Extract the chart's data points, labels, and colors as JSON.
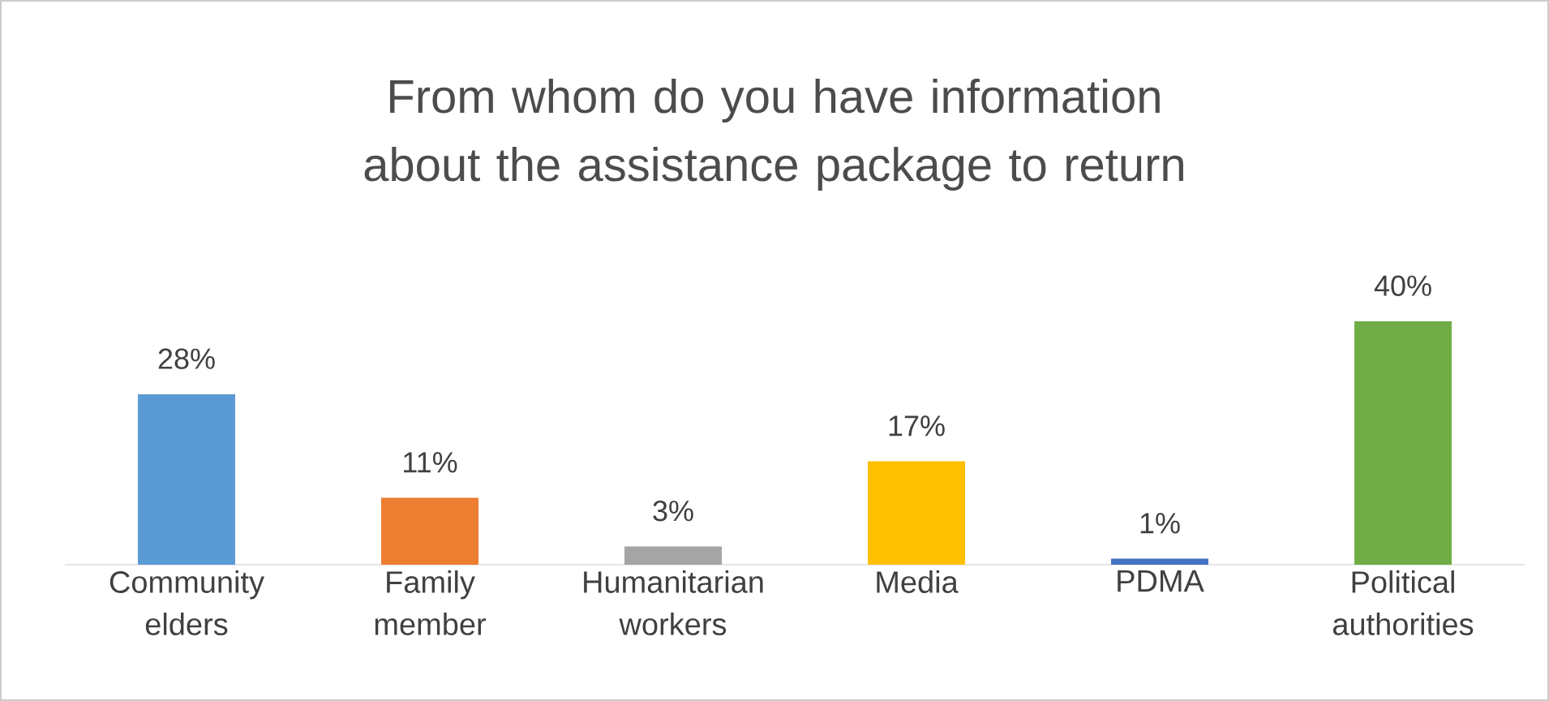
{
  "chart_data": {
    "type": "bar",
    "title": "From whom do you have information about the assistance package to return",
    "categories": [
      "Community elders",
      "Family member",
      "Humanitarian workers",
      "Media",
      "PDMA",
      "Political authorities"
    ],
    "values": [
      28,
      11,
      3,
      17,
      1,
      40
    ],
    "colors": [
      "#5b9bd5",
      "#ed7d31",
      "#a5a5a5",
      "#ffc000",
      "#4472c4",
      "#70ad47"
    ],
    "value_labels": [
      "28%",
      "11%",
      "3%",
      "17%",
      "1%",
      "40%"
    ]
  }
}
